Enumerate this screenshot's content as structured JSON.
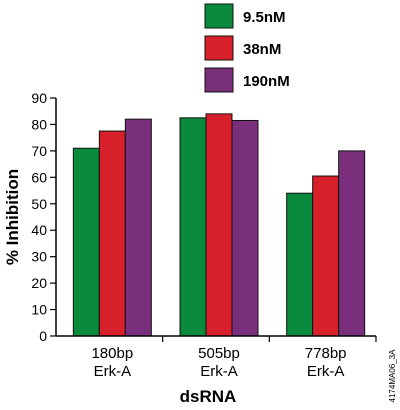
{
  "chart_data": {
    "type": "bar",
    "categories": [
      "180bp\nErk-A",
      "505bp\nErk-A",
      "778bp\nErk-A"
    ],
    "series": [
      {
        "name": "9.5nM",
        "values": [
          71,
          82.5,
          54
        ],
        "color": "#0a8a3c"
      },
      {
        "name": "38nM",
        "values": [
          77.5,
          84,
          60.5
        ],
        "color": "#d8202a"
      },
      {
        "name": "190nM",
        "values": [
          82,
          81.5,
          70
        ],
        "color": "#7a2f7c"
      }
    ],
    "title": "",
    "xlabel": "dsRNA",
    "ylabel": "% Inhibition",
    "ylim": [
      0,
      90
    ],
    "yticks": [
      0,
      10,
      20,
      30,
      40,
      50,
      60,
      70,
      80,
      90
    ],
    "grid": false,
    "legend_position": "top-center"
  },
  "figure_code": "4174MA06_3A"
}
